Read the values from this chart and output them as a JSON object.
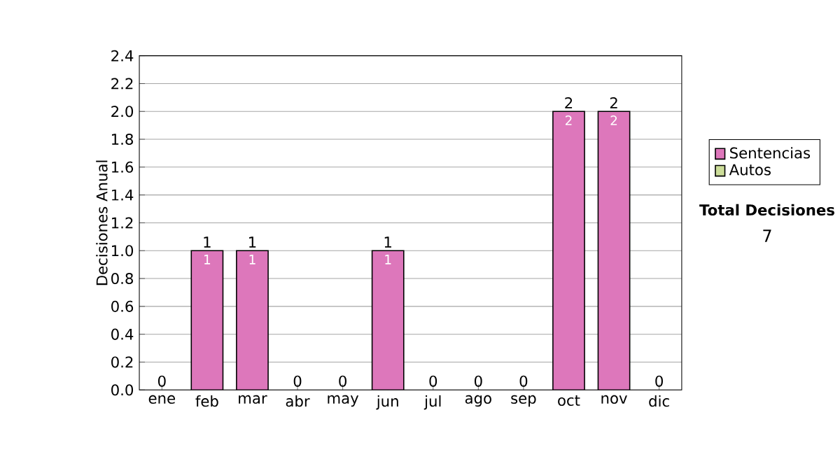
{
  "chart_data": {
    "type": "bar",
    "stacked": true,
    "ylabel": "Decisiones Anual",
    "categories": [
      "ene",
      "feb",
      "mar",
      "abr",
      "may",
      "jun",
      "jul",
      "ago",
      "sep",
      "oct",
      "nov",
      "dic"
    ],
    "series": [
      {
        "name": "Sentencias",
        "color": "#dd77bb",
        "values": [
          0,
          1,
          1,
          0,
          0,
          1,
          0,
          0,
          0,
          2,
          2,
          0
        ],
        "value_labels": [
          null,
          "1",
          "1",
          null,
          null,
          "1",
          null,
          null,
          null,
          "2",
          "2",
          null
        ]
      },
      {
        "name": "Autos",
        "color": "#ccdd99",
        "values": [
          0,
          0,
          0,
          0,
          0,
          0,
          0,
          0,
          0,
          0,
          0,
          0
        ]
      }
    ],
    "totals": [
      "0",
      "1",
      "1",
      "0",
      "0",
      "1",
      "0",
      "0",
      "0",
      "2",
      "2",
      "0"
    ],
    "ylim": [
      0,
      2.4
    ],
    "yticks": [
      {
        "value": 0,
        "label": "0.0"
      },
      0.2,
      0.4,
      0.6,
      0.8,
      {
        "value": 1,
        "label": "1.0"
      },
      1.2,
      1.4,
      1.6,
      1.8,
      {
        "value": 2,
        "label": "2.0"
      },
      2.2,
      2.4
    ],
    "grid": "y",
    "legend": "right",
    "annotations": [
      "Total Decisiones",
      "7"
    ]
  }
}
